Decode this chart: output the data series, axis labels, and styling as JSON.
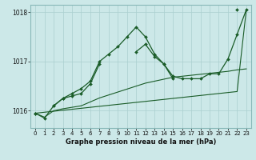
{
  "xlabel": "Graphe pression niveau de la mer (hPa)",
  "x": [
    0,
    1,
    2,
    3,
    4,
    5,
    6,
    7,
    8,
    9,
    10,
    11,
    12,
    13,
    14,
    15,
    16,
    17,
    18,
    19,
    20,
    21,
    22,
    23
  ],
  "series_a": [
    1015.95,
    null,
    1016.1,
    1016.25,
    1016.35,
    1016.45,
    1016.6,
    1017.0,
    1017.15,
    1017.3,
    1017.5,
    1017.7,
    1017.5,
    1017.15,
    1016.95,
    1016.65,
    null,
    null,
    null,
    null,
    null,
    null,
    1018.05,
    null
  ],
  "series_b": [
    1015.95,
    1015.85,
    1016.1,
    1016.25,
    1016.3,
    1016.35,
    1016.55,
    1016.95,
    null,
    null,
    null,
    1017.2,
    1017.35,
    1017.1,
    1016.95,
    1016.7,
    1016.65,
    1016.65,
    1016.65,
    1016.75,
    1016.75,
    1017.05,
    1017.55,
    1018.05
  ],
  "series_c": [
    1015.95,
    1015.87,
    1016.0,
    1016.04,
    1016.07,
    1016.1,
    1016.18,
    1016.26,
    1016.32,
    1016.38,
    1016.44,
    1016.5,
    1016.56,
    1016.6,
    1016.64,
    1016.68,
    1016.7,
    1016.72,
    1016.74,
    1016.76,
    1016.78,
    1016.8,
    1016.83,
    1016.85
  ],
  "series_d": [
    1015.95,
    1015.97,
    1015.99,
    1016.01,
    1016.03,
    1016.05,
    1016.07,
    1016.09,
    1016.11,
    1016.13,
    1016.15,
    1016.17,
    1016.19,
    1016.21,
    1016.23,
    1016.25,
    1016.27,
    1016.29,
    1016.31,
    1016.33,
    1016.35,
    1016.37,
    1016.39,
    1018.05
  ],
  "bg_color": "#cce8e8",
  "grid_color": "#aacfcf",
  "line_color": "#1a5c28",
  "ylim": [
    1015.65,
    1018.15
  ],
  "yticks": [
    1016,
    1017,
    1018
  ],
  "xticks": [
    0,
    1,
    2,
    3,
    4,
    5,
    6,
    7,
    8,
    9,
    10,
    11,
    12,
    13,
    14,
    15,
    16,
    17,
    18,
    19,
    20,
    21,
    22,
    23
  ]
}
